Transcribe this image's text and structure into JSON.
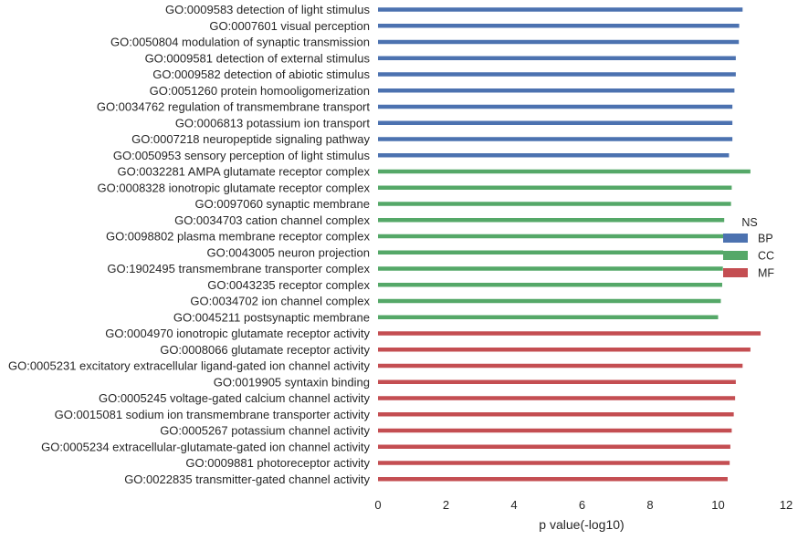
{
  "chart_data": {
    "type": "bar",
    "orientation": "horizontal",
    "xlabel": "p value(-log10)",
    "ylabel": "",
    "xlim": [
      0,
      12
    ],
    "xticks": [
      0,
      2,
      4,
      6,
      8,
      10,
      12
    ],
    "grid": false,
    "legend": {
      "title": "NS",
      "placement": "right",
      "entries": [
        {
          "name": "BP",
          "color": "#4c72b0"
        },
        {
          "name": "CC",
          "color": "#55a868"
        },
        {
          "name": "MF",
          "color": "#c44e52"
        }
      ]
    },
    "categories": [
      {
        "label": "GO:0009583 detection of light stimulus",
        "group": "BP",
        "value": 10.72
      },
      {
        "label": "GO:0007601 visual perception",
        "group": "BP",
        "value": 10.62
      },
      {
        "label": "GO:0050804 modulation of synaptic transmission",
        "group": "BP",
        "value": 10.61
      },
      {
        "label": "GO:0009581 detection of external stimulus",
        "group": "BP",
        "value": 10.52
      },
      {
        "label": "GO:0009582 detection of abiotic stimulus",
        "group": "BP",
        "value": 10.52
      },
      {
        "label": "GO:0051260 protein homooligomerization",
        "group": "BP",
        "value": 10.48
      },
      {
        "label": "GO:0034762 regulation of transmembrane transport",
        "group": "BP",
        "value": 10.42
      },
      {
        "label": "GO:0006813 potassium ion transport",
        "group": "BP",
        "value": 10.42
      },
      {
        "label": "GO:0007218 neuropeptide signaling pathway",
        "group": "BP",
        "value": 10.42
      },
      {
        "label": "GO:0050953 sensory perception of light stimulus",
        "group": "BP",
        "value": 10.32
      },
      {
        "label": "GO:0032281 AMPA glutamate receptor complex",
        "group": "CC",
        "value": 10.95
      },
      {
        "label": "GO:0008328 ionotropic glutamate receptor complex",
        "group": "CC",
        "value": 10.4
      },
      {
        "label": "GO:0097060 synaptic membrane",
        "group": "CC",
        "value": 10.38
      },
      {
        "label": "GO:0034703 cation channel complex",
        "group": "CC",
        "value": 10.18
      },
      {
        "label": "GO:0098802 plasma membrane receptor complex",
        "group": "CC",
        "value": 10.16
      },
      {
        "label": "GO:0043005 neuron projection",
        "group": "CC",
        "value": 10.15
      },
      {
        "label": "GO:1902495 transmembrane transporter complex",
        "group": "CC",
        "value": 10.14
      },
      {
        "label": "GO:0043235 receptor complex",
        "group": "CC",
        "value": 10.12
      },
      {
        "label": "GO:0034702 ion channel complex",
        "group": "CC",
        "value": 10.08
      },
      {
        "label": "GO:0045211 postsynaptic membrane",
        "group": "CC",
        "value": 10.0
      },
      {
        "label": "GO:0004970 ionotropic glutamate receptor activity",
        "group": "MF",
        "value": 11.25
      },
      {
        "label": "GO:0008066 glutamate receptor activity",
        "group": "MF",
        "value": 10.95
      },
      {
        "label": "GO:0005231 excitatory extracellular ligand-gated ion channel activity",
        "group": "MF",
        "value": 10.72
      },
      {
        "label": "GO:0019905 syntaxin binding",
        "group": "MF",
        "value": 10.52
      },
      {
        "label": "GO:0005245 voltage-gated calcium channel activity",
        "group": "MF",
        "value": 10.5
      },
      {
        "label": "GO:0015081 sodium ion transmembrane transporter activity",
        "group": "MF",
        "value": 10.46
      },
      {
        "label": "GO:0005267 potassium channel activity",
        "group": "MF",
        "value": 10.4
      },
      {
        "label": "GO:0005234 extracellular-glutamate-gated ion channel activity",
        "group": "MF",
        "value": 10.36
      },
      {
        "label": "GO:0009881 photoreceptor activity",
        "group": "MF",
        "value": 10.34
      },
      {
        "label": "GO:0022835 transmitter-gated channel activity",
        "group": "MF",
        "value": 10.28
      }
    ]
  }
}
